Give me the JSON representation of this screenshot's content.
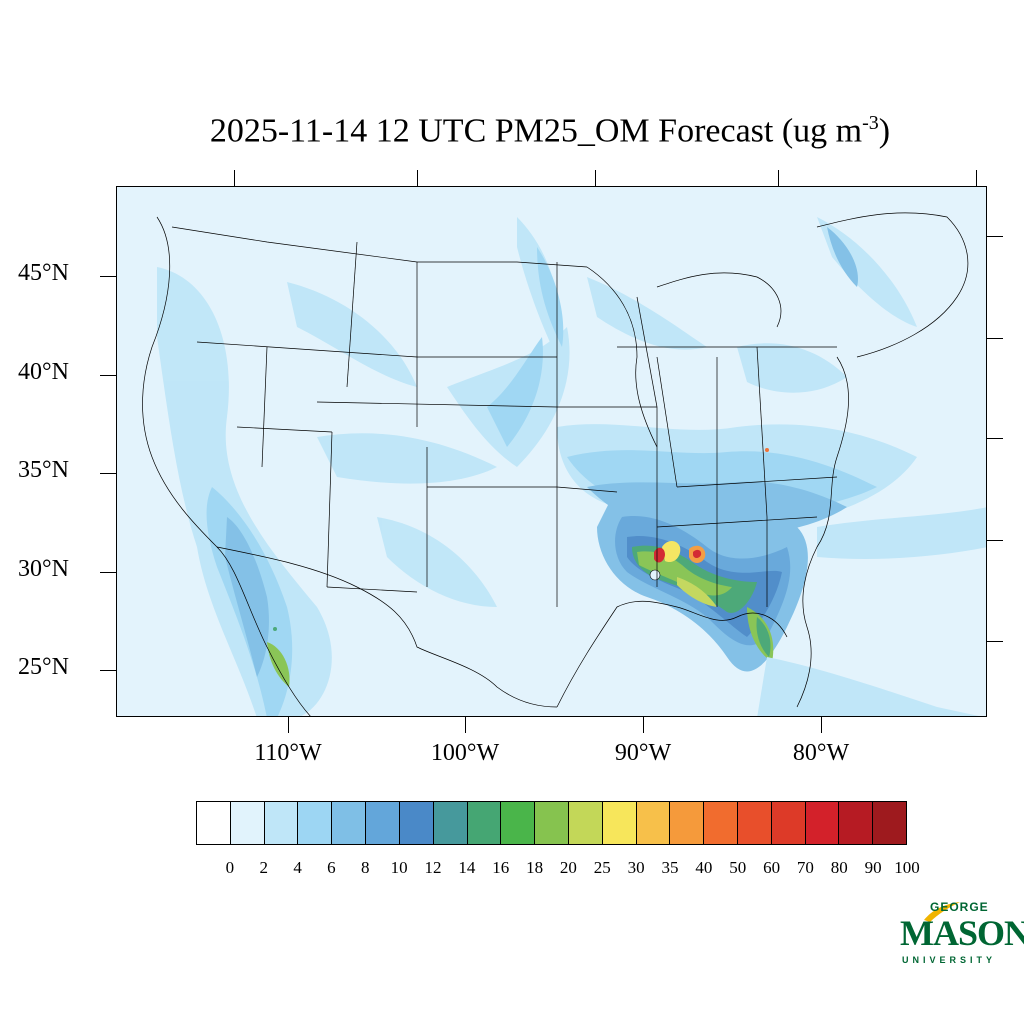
{
  "title": {
    "main": "2025-11-14 12 UTC PM25_OM Forecast (ug m",
    "superscript": "-3",
    "close": ")"
  },
  "latitude_labels": [
    "45°N",
    "40°N",
    "35°N",
    "30°N",
    "25°N"
  ],
  "longitude_labels": [
    "110°W",
    "100°W",
    "90°W",
    "80°W"
  ],
  "colorbar": {
    "labels": [
      "0",
      "2",
      "4",
      "6",
      "8",
      "10",
      "12",
      "14",
      "16",
      "18",
      "20",
      "25",
      "30",
      "35",
      "40",
      "50",
      "60",
      "70",
      "80",
      "90",
      "100"
    ],
    "colors": [
      "#ffffff",
      "#e1f3fc",
      "#bfe6f8",
      "#9dd6f3",
      "#7fbfe6",
      "#63a6da",
      "#4a89c8",
      "#46999c",
      "#45a673",
      "#4ab54a",
      "#86c34f",
      "#c3d758",
      "#f7e65b",
      "#f7c04a",
      "#f59a3b",
      "#f16c2e",
      "#e84f2b",
      "#dd3a28",
      "#d3212a",
      "#b61b23",
      "#9e1a1e"
    ]
  },
  "logo": {
    "george": "GEORGE",
    "mason": "MASON",
    "university": "UNIVERSITY",
    "color": "#006633",
    "accent": "#f0b400"
  }
}
